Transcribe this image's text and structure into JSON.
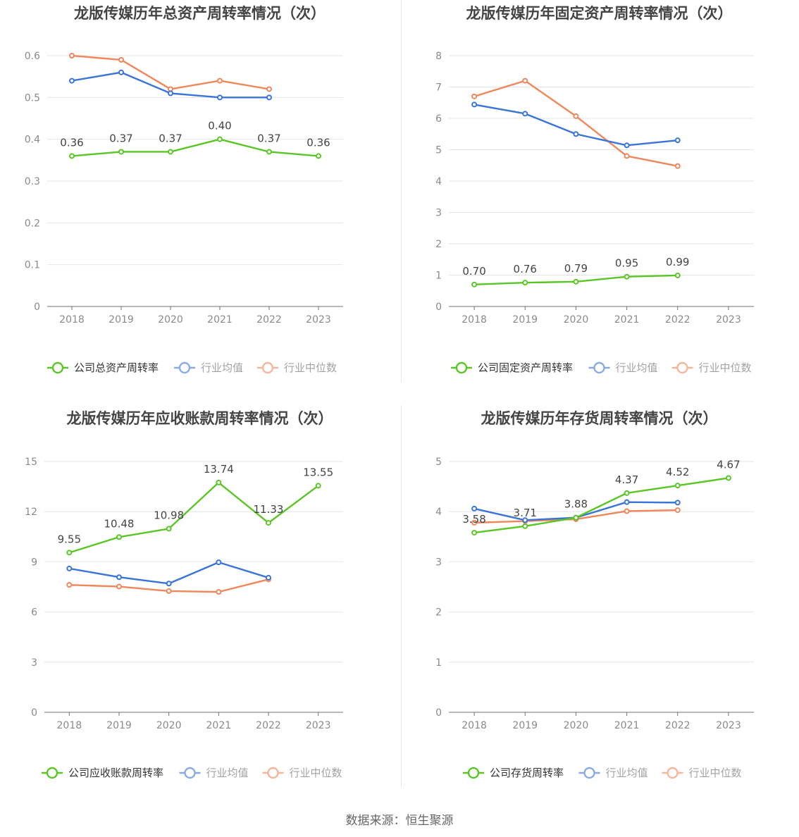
{
  "colors": {
    "company": "#5ac626",
    "average": "#3a74d8",
    "median": "#f0875a"
  },
  "legend": {
    "average": "行业均值",
    "median": "行业中位数"
  },
  "source": "数据来源：恒生聚源",
  "chart_data": [
    {
      "type": "line",
      "title": "龙版传媒历年总资产周转率情况（次）",
      "categories": [
        "2018",
        "2019",
        "2020",
        "2021",
        "2022",
        "2023"
      ],
      "ylim": [
        0,
        0.6
      ],
      "yticks": [
        "0",
        "0.1",
        "0.2",
        "0.3",
        "0.4",
        "0.5",
        "0.6"
      ],
      "grid": true,
      "legend_position": "bottom",
      "series": [
        {
          "name": "公司总资产周转率",
          "role": "company",
          "values": [
            0.36,
            0.37,
            0.37,
            0.4,
            0.37,
            0.36
          ],
          "labels": [
            "0.36",
            "0.37",
            "0.37",
            "0.40",
            "0.37",
            "0.36"
          ]
        },
        {
          "name": "行业均值",
          "role": "average",
          "values": [
            0.54,
            0.56,
            0.51,
            0.5,
            0.5,
            null
          ]
        },
        {
          "name": "行业中位数",
          "role": "median",
          "values": [
            0.6,
            0.59,
            0.52,
            0.54,
            0.52,
            null
          ]
        }
      ]
    },
    {
      "type": "line",
      "title": "龙版传媒历年固定资产周转率情况（次）",
      "categories": [
        "2018",
        "2019",
        "2020",
        "2021",
        "2022",
        "2023"
      ],
      "ylim": [
        0,
        8
      ],
      "yticks": [
        "0",
        "1",
        "2",
        "3",
        "4",
        "5",
        "6",
        "7",
        "8"
      ],
      "grid": true,
      "legend_position": "bottom",
      "series": [
        {
          "name": "公司固定资产周转率",
          "role": "company",
          "values": [
            0.7,
            0.76,
            0.79,
            0.95,
            0.99,
            null
          ],
          "labels": [
            "0.70",
            "0.76",
            "0.79",
            "0.95",
            "0.99",
            null
          ]
        },
        {
          "name": "行业均值",
          "role": "average",
          "values": [
            6.44,
            6.15,
            5.5,
            5.14,
            5.3,
            null
          ]
        },
        {
          "name": "行业中位数",
          "role": "median",
          "values": [
            6.7,
            7.2,
            6.07,
            4.8,
            4.48,
            null
          ]
        }
      ]
    },
    {
      "type": "line",
      "title": "龙版传媒历年应收账款周转率情况（次）",
      "categories": [
        "2018",
        "2019",
        "2020",
        "2021",
        "2022",
        "2023"
      ],
      "ylim": [
        0,
        15
      ],
      "yticks": [
        "0",
        "3",
        "6",
        "9",
        "12",
        "15"
      ],
      "grid": true,
      "legend_position": "bottom",
      "series": [
        {
          "name": "公司应收账款周转率",
          "role": "company",
          "values": [
            9.55,
            10.48,
            10.98,
            13.74,
            11.33,
            13.55
          ],
          "labels": [
            "9.55",
            "10.48",
            "10.98",
            "13.74",
            "11.33",
            "13.55"
          ]
        },
        {
          "name": "行业均值",
          "role": "average",
          "values": [
            8.6,
            8.08,
            7.7,
            8.97,
            8.05,
            null
          ]
        },
        {
          "name": "行业中位数",
          "role": "median",
          "values": [
            7.62,
            7.52,
            7.25,
            7.2,
            7.95,
            null
          ]
        }
      ]
    },
    {
      "type": "line",
      "title": "龙版传媒历年存货周转率情况（次）",
      "categories": [
        "2018",
        "2019",
        "2020",
        "2021",
        "2022",
        "2023"
      ],
      "ylim": [
        0,
        5
      ],
      "yticks": [
        "0",
        "1",
        "2",
        "3",
        "4",
        "5"
      ],
      "grid": true,
      "legend_position": "bottom",
      "series": [
        {
          "name": "公司存货周转率",
          "role": "company",
          "values": [
            3.58,
            3.71,
            3.88,
            4.37,
            4.52,
            4.67
          ],
          "labels": [
            "3.58",
            "3.71",
            "3.88",
            "4.37",
            "4.52",
            "4.67"
          ]
        },
        {
          "name": "行业均值",
          "role": "average",
          "values": [
            4.06,
            3.83,
            3.88,
            4.19,
            4.18,
            null
          ]
        },
        {
          "name": "行业中位数",
          "role": "median",
          "values": [
            3.78,
            3.81,
            3.85,
            4.01,
            4.03,
            null
          ]
        }
      ]
    }
  ]
}
